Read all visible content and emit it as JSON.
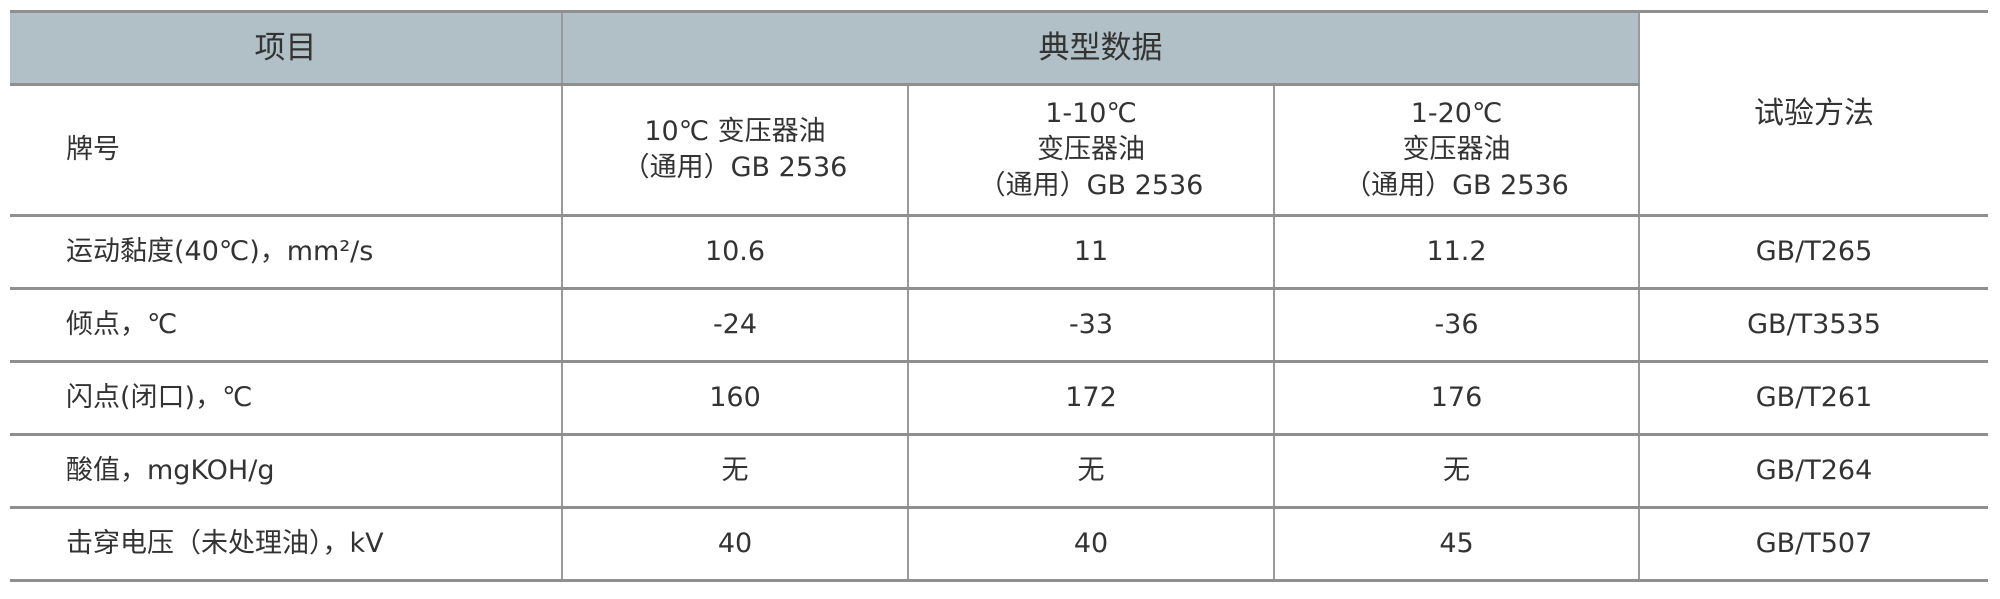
{
  "header": {
    "item": "项目",
    "typical_data": "典型数据",
    "test_method": "试验方法"
  },
  "brand_row": {
    "label": "牌号",
    "products": [
      {
        "lines": [
          "10℃ 变压器油",
          "（通用）GB 2536"
        ]
      },
      {
        "lines": [
          "1-10℃",
          "变压器油",
          "（通用）GB 2536"
        ]
      },
      {
        "lines": [
          "1-20℃",
          "变压器油",
          "（通用）GB 2536"
        ]
      }
    ]
  },
  "rows": [
    {
      "label": "运动黏度(40℃)，mm²/s",
      "values": [
        "10.6",
        "11",
        "11.2"
      ],
      "method": "GB/T265"
    },
    {
      "label": "倾点，℃",
      "values": [
        "-24",
        "-33",
        "-36"
      ],
      "method": "GB/T3535"
    },
    {
      "label": "闪点(闭口)，℃",
      "values": [
        "160",
        "172",
        "176"
      ],
      "method": "GB/T261"
    },
    {
      "label": "酸值，mgKOH/g",
      "values": [
        "无",
        "无",
        "无"
      ],
      "method": "GB/T264"
    },
    {
      "label": "击穿电压（未处理油），kV",
      "values": [
        "40",
        "40",
        "45"
      ],
      "method": "GB/T507"
    }
  ],
  "colors": {
    "header_bg": "#b1bfc6",
    "border": "#8f8f8f",
    "text": "#333333"
  }
}
